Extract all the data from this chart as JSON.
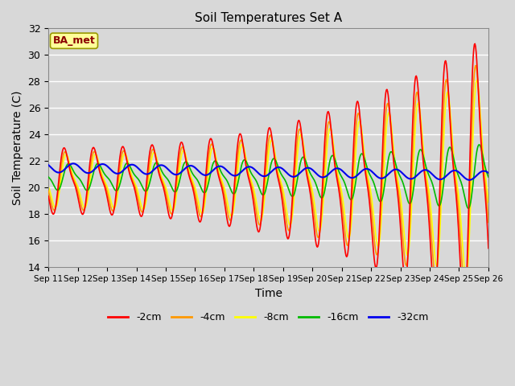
{
  "title": "Soil Temperatures Set A",
  "xlabel": "Time",
  "ylabel": "Soil Temperature (C)",
  "ylim": [
    14,
    32
  ],
  "background_color": "#d8d8d8",
  "plot_bg_color": "#d8d8d8",
  "annotation_text": "BA_met",
  "annotation_bg": "#ffff99",
  "annotation_border": "#999900",
  "grid_color": "#ffffff",
  "line_colors": {
    "-2cm": "#ff0000",
    "-4cm": "#ff9900",
    "-8cm": "#ffff00",
    "-16cm": "#00bb00",
    "-32cm": "#0000ee"
  },
  "line_widths": {
    "-2cm": 1.2,
    "-4cm": 1.2,
    "-8cm": 1.2,
    "-16cm": 1.2,
    "-32cm": 1.5
  },
  "xtick_labels": [
    "Sep 11",
    "Sep 12",
    "Sep 13",
    "Sep 14",
    "Sep 15",
    "Sep 16",
    "Sep 17",
    "Sep 18",
    "Sep 19",
    "Sep 20",
    "Sep 21",
    "Sep 22",
    "Sep 23",
    "Sep 24",
    "Sep 25",
    "Sep 26"
  ],
  "ytick_values": [
    14,
    16,
    18,
    20,
    22,
    24,
    26,
    28,
    30,
    32
  ]
}
